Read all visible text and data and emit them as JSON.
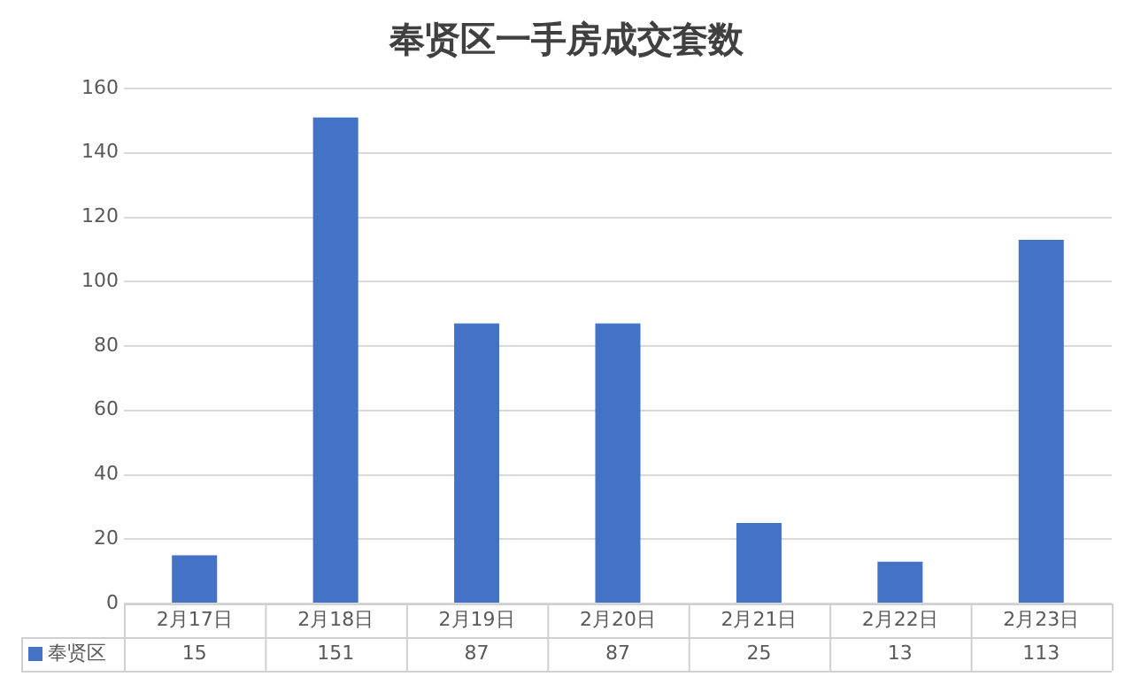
{
  "chart_data": {
    "type": "bar",
    "title": "奉贤区一手房成交套数",
    "categories": [
      "2月17日",
      "2月18日",
      "2月19日",
      "2月20日",
      "2月21日",
      "2月22日",
      "2月23日"
    ],
    "series": [
      {
        "name": "奉贤区",
        "color": "#4472c4",
        "values": [
          15,
          151,
          87,
          87,
          25,
          13,
          113
        ]
      }
    ],
    "ylim": [
      0,
      160
    ],
    "yticks": [
      0,
      20,
      40,
      60,
      80,
      100,
      120,
      140,
      160
    ],
    "grid": "y",
    "legend": "bottom left",
    "data_labels": true
  }
}
